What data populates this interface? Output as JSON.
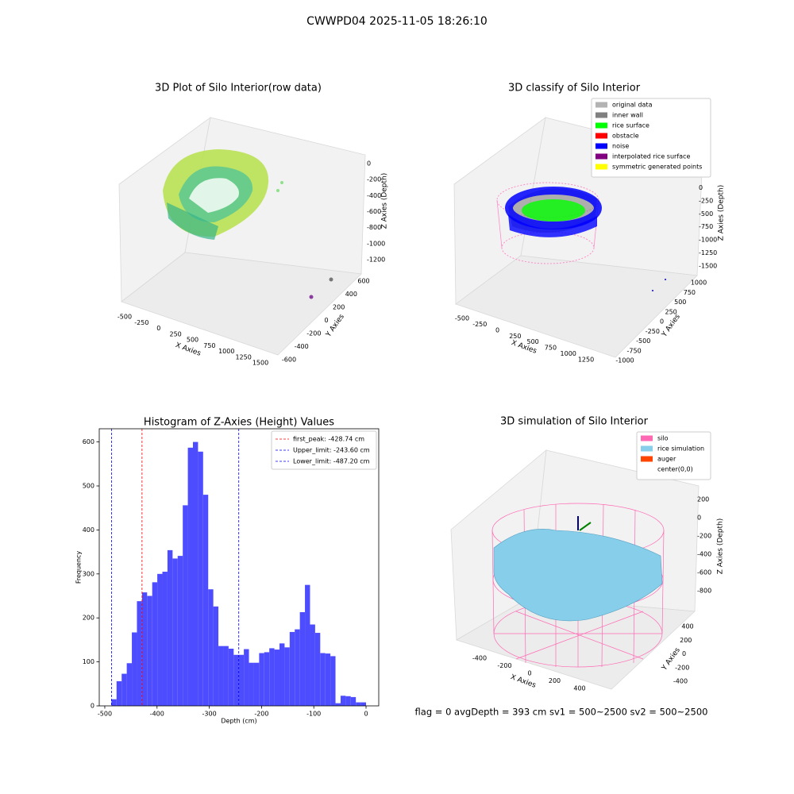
{
  "suptitle": "CWWPD04 2025-11-05 18:26:10",
  "status_line": "flag = 0     avgDepth = 393 cm  sv1 = 500~2500  sv2 = 500~2500",
  "panels": [
    {
      "title": "3D Plot of Silo Interior(row data)",
      "xlabel": "X Axies",
      "ylabel": "Y Axies",
      "zlabel": "Z Axies (Depth)",
      "xticks": [
        -500,
        -250,
        0,
        250,
        500,
        750,
        1000,
        1250,
        1500
      ],
      "yticks": [
        -600,
        -400,
        -200,
        0,
        200,
        400,
        600
      ],
      "zticks": [
        0,
        -200,
        -400,
        -600,
        -800,
        -1000,
        -1200
      ]
    },
    {
      "title": "3D classify of Silo Interior",
      "xlabel": "X Axies",
      "ylabel": "Y Axies",
      "zlabel": "Z Axies (Depth)",
      "xticks": [
        -500,
        -250,
        0,
        250,
        500,
        750,
        1000,
        1250
      ],
      "yticks": [
        -1000,
        -750,
        -500,
        -250,
        0,
        250,
        500,
        750,
        1000
      ],
      "zticks": [
        250,
        0,
        -250,
        -500,
        -750,
        -1000,
        -1250,
        -1500
      ],
      "legend": [
        {
          "name": "original data",
          "color": "#b3b3b3"
        },
        {
          "name": "inner wall",
          "color": "#808080"
        },
        {
          "name": "rice surface",
          "color": "#00ff00"
        },
        {
          "name": "obstacle",
          "color": "#ff0000"
        },
        {
          "name": "noise",
          "color": "#0000ff"
        },
        {
          "name": "interpolated rice surface",
          "color": "#800080"
        },
        {
          "name": "symmetric generated points",
          "color": "#ffff00"
        }
      ]
    },
    {
      "title": "3D simulation of Silo Interior",
      "xlabel": "X Axies",
      "ylabel": "Y Axies",
      "zlabel": "Z Axies (Depth)",
      "xticks": [
        -400,
        -200,
        0,
        200,
        400
      ],
      "yticks": [
        -400,
        -200,
        0,
        200,
        400
      ],
      "zticks": [
        200,
        0,
        -200,
        -400,
        -600,
        -800
      ],
      "legend": [
        {
          "name": "silo",
          "color": "#ff69b4"
        },
        {
          "name": "rice simulation",
          "color": "#87ceeb"
        },
        {
          "name": "auger",
          "color": "#ff4500"
        },
        {
          "name": "center(0,0)",
          "color": "#ffffff"
        }
      ]
    }
  ],
  "chart_data": {
    "type": "histogram",
    "title": "Histogram of Z-Axies (Height) Values",
    "xlabel": "Depth (cm)",
    "ylabel": "Frequency",
    "color": "#4d4dff",
    "bins": [
      -487.2,
      -477.46,
      -467.71,
      -457.97,
      -448.22,
      -438.48,
      -428.74,
      -419.0,
      -409.25,
      -399.5,
      -389.76,
      -380.02,
      -370.27,
      -360.53,
      -350.78,
      -341.04,
      -331.3,
      -321.55,
      -311.81,
      -302.06,
      -292.32,
      -282.58,
      -272.83,
      -263.09,
      -253.34,
      -243.6,
      -233.86,
      -224.11,
      -214.37,
      -204.62,
      -194.88,
      -185.14,
      -175.39,
      -165.65,
      -155.9,
      -146.16,
      -136.42,
      -126.67,
      -116.93,
      -107.18,
      -97.44,
      -87.7,
      -77.95,
      -68.21,
      -58.46,
      -48.72,
      -38.98,
      -29.23,
      -19.49,
      -9.74,
      0
    ],
    "values": [
      15,
      56,
      73,
      97,
      167,
      238,
      258,
      250,
      281,
      300,
      305,
      354,
      335,
      341,
      456,
      587,
      600,
      578,
      480,
      265,
      226,
      136,
      136,
      130,
      116,
      116,
      129,
      98,
      98,
      120,
      122,
      131,
      128,
      142,
      133,
      168,
      174,
      213,
      275,
      185,
      166,
      120,
      119,
      113,
      6,
      23,
      22,
      20,
      8,
      8
    ],
    "xlim": [
      -510.6,
      24.3
    ],
    "ylim": [
      0,
      630
    ],
    "xticks": [
      -500,
      -400,
      -300,
      -200,
      -100,
      0
    ],
    "yticks": [
      0,
      100,
      200,
      300,
      400,
      500,
      600
    ],
    "vlines": [
      {
        "name": "first_peak: -428.74 cm",
        "value": -428.74,
        "color": "#ff0000"
      },
      {
        "name": "Upper_limit: -243.60 cm",
        "value": -243.6,
        "color": "#0000ff"
      },
      {
        "name": "Lower_limit: -487.20 cm",
        "value": -487.2,
        "color": "#0000ff"
      }
    ],
    "legend_position": "upper right"
  }
}
